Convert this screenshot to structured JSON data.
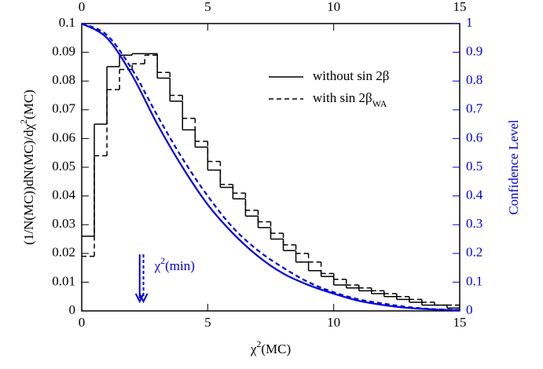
{
  "chart_data": {
    "type": "histogram",
    "x_label": [
      {
        "text": "χ"
      },
      {
        "sup": "2"
      },
      {
        "text": "(MC)"
      }
    ],
    "y_label": [
      {
        "text": "(1/N(MC))dN(MC)/dχ"
      },
      {
        "sup": "2"
      },
      {
        "text": "(MC)"
      }
    ],
    "y2_label": [
      {
        "text": "Confidence Level"
      }
    ],
    "bins": [
      0,
      0.5,
      1,
      1.5,
      2,
      2.5,
      3,
      3.5,
      4,
      4.5,
      5,
      5.5,
      6,
      6.5,
      7,
      7.5,
      8,
      8.5,
      9,
      9.5,
      10,
      10.5,
      11,
      11.5,
      12,
      12.5,
      13,
      13.5,
      14,
      14.5,
      15
    ],
    "series": [
      {
        "name": [
          {
            "text": "without sin 2β"
          }
        ],
        "color": "#000000",
        "dash": "solid",
        "values": [
          0.026,
          0.065,
          0.085,
          0.089,
          0.0895,
          0.0895,
          0.081,
          0.073,
          0.063,
          0.057,
          0.049,
          0.043,
          0.039,
          0.033,
          0.029,
          0.025,
          0.021,
          0.017,
          0.014,
          0.012,
          0.009,
          0.008,
          0.007,
          0.006,
          0.005,
          0.004,
          0.003,
          0.002,
          0.002,
          0.001
        ]
      },
      {
        "name": [
          {
            "text": "with sin 2β"
          },
          {
            "sub": "WA"
          }
        ],
        "color": "#000000",
        "dash": "dashed",
        "values": [
          0.019,
          0.054,
          0.077,
          0.084,
          0.086,
          0.089,
          0.083,
          0.075,
          0.067,
          0.059,
          0.052,
          0.044,
          0.041,
          0.035,
          0.031,
          0.027,
          0.023,
          0.02,
          0.017,
          0.013,
          0.011,
          0.009,
          0.008,
          0.007,
          0.006,
          0.005,
          0.004,
          0.003,
          0.002,
          0.002
        ]
      }
    ],
    "curves": [
      {
        "color": "#0000dd",
        "dash": "solid",
        "axis": "y2",
        "x": [
          0,
          1,
          2,
          3,
          4,
          5,
          6,
          7,
          8,
          9,
          10,
          11,
          12,
          13,
          14,
          15
        ],
        "values": [
          1,
          0.95,
          0.82,
          0.65,
          0.5,
          0.37,
          0.27,
          0.19,
          0.13,
          0.09,
          0.06,
          0.035,
          0.02,
          0.01,
          0.005,
          0.002
        ]
      },
      {
        "color": "#0000dd",
        "dash": "dashed",
        "axis": "y2",
        "x": [
          0,
          1,
          2,
          3,
          4,
          5,
          6,
          7,
          8,
          9,
          10,
          11,
          12,
          13,
          14,
          15
        ],
        "values": [
          1,
          0.96,
          0.84,
          0.68,
          0.53,
          0.4,
          0.29,
          0.21,
          0.15,
          0.1,
          0.065,
          0.04,
          0.025,
          0.013,
          0.006,
          0.003
        ]
      }
    ],
    "annotation": {
      "parts": [
        {
          "text": "χ"
        },
        {
          "sup": "2"
        },
        {
          "text": "(min)"
        }
      ],
      "color": "#0000dd",
      "arrows_x": [
        2.3,
        2.45
      ]
    },
    "xlim": [
      0,
      15
    ],
    "xticks": [
      0,
      5,
      10,
      15
    ],
    "ylim": [
      0,
      0.1
    ],
    "yticks": [
      0,
      0.01,
      0.02,
      0.03,
      0.04,
      0.05,
      0.06,
      0.07,
      0.08,
      0.09,
      0.1
    ],
    "y2lim": [
      0,
      1
    ],
    "y2ticks": [
      0,
      0.1,
      0.2,
      0.3,
      0.4,
      0.5,
      0.6,
      0.7,
      0.8,
      0.9,
      1
    ],
    "y2_color": "#0000dd",
    "legend": "upper right"
  }
}
